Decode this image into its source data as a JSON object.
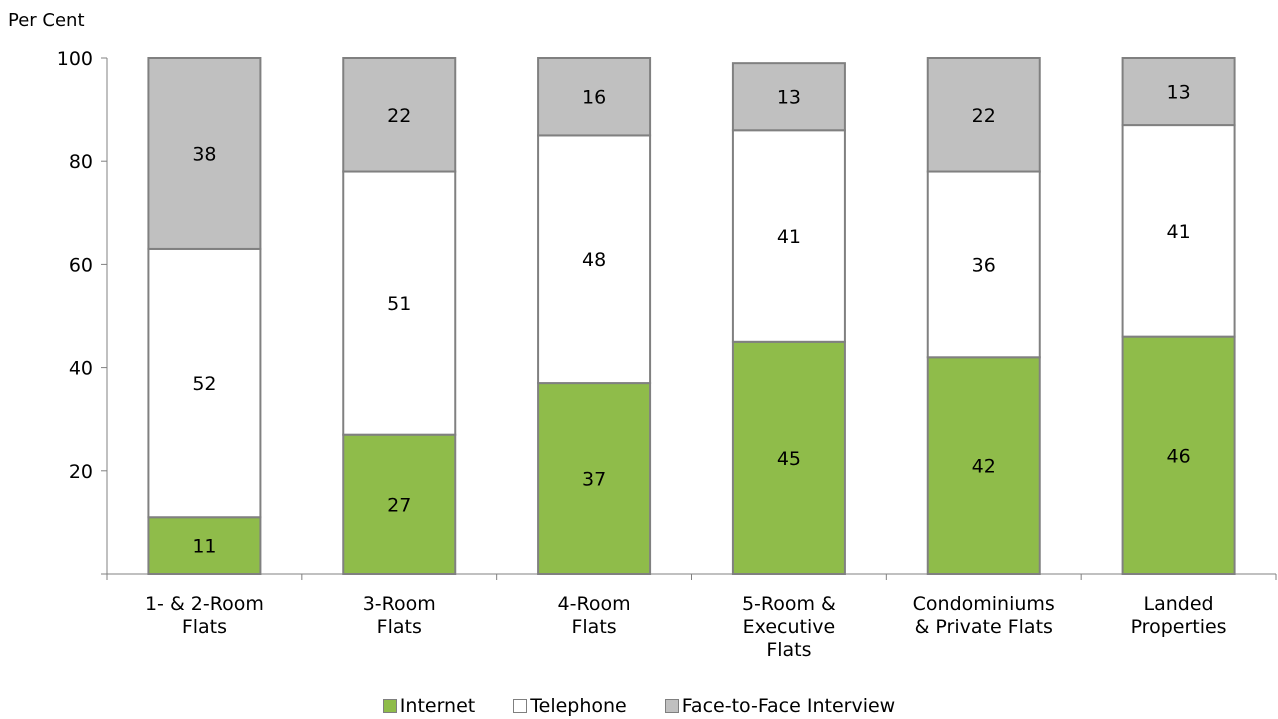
{
  "chart_data": {
    "type": "bar",
    "stacked": true,
    "ylabel": "Per Cent",
    "ylim": [
      0,
      100
    ],
    "yticks": [
      "20",
      "40",
      "60",
      "80",
      "100"
    ],
    "categories": [
      [
        "1- & 2-Room",
        "Flats"
      ],
      [
        "3-Room",
        "Flats"
      ],
      [
        "4-Room",
        "Flats"
      ],
      [
        "5-Room &",
        "Executive",
        "Flats"
      ],
      [
        "Condominiums",
        "& Private Flats"
      ],
      [
        "Landed",
        "Properties"
      ]
    ],
    "series": [
      {
        "name": "Internet",
        "color": "#8fbc4a",
        "values": [
          11,
          27,
          37,
          45,
          42,
          46
        ]
      },
      {
        "name": "Telephone",
        "color": "#ffffff",
        "values": [
          52,
          51,
          48,
          41,
          36,
          41
        ]
      },
      {
        "name": "Face-to-Face Interview",
        "color": "#c0c0c0",
        "values": [
          38,
          22,
          16,
          13,
          22,
          13
        ]
      }
    ],
    "grid": false,
    "legend": "bottom"
  }
}
